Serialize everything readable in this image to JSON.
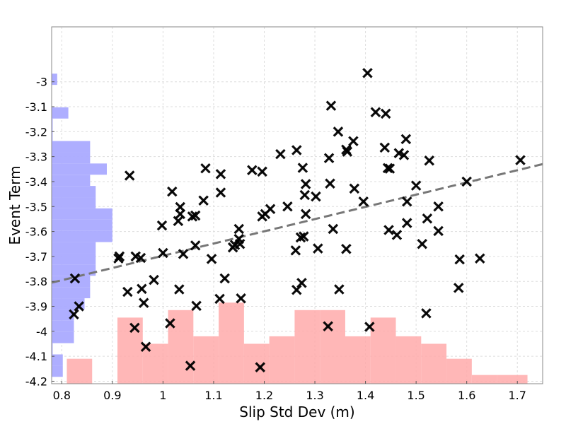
{
  "chart_data": {
    "type": "scatter",
    "xlabel": "Slip Std Dev (m)",
    "ylabel": "Event Term",
    "xlim": [
      0.78,
      1.75
    ],
    "ylim": [
      -4.21,
      -2.78
    ],
    "xticks": [
      "0.8",
      "0.9",
      "1",
      "1.1",
      "1.2",
      "1.3",
      "1.4",
      "1.5",
      "1.6",
      "1.7"
    ],
    "xtick_values": [
      0.8,
      0.9,
      1.0,
      1.1,
      1.2,
      1.3,
      1.4,
      1.5,
      1.6,
      1.7
    ],
    "yticks": [
      "-3",
      "-3.1",
      "-3.2",
      "-3.3",
      "-3.4",
      "-3.5",
      "-3.6",
      "-3.7",
      "-3.8",
      "-3.9",
      "-4",
      "-4.1",
      "-4.2"
    ],
    "ytick_values": [
      -3.0,
      -3.1,
      -3.2,
      -3.3,
      -3.4,
      -3.5,
      -3.6,
      -3.7,
      -3.8,
      -3.9,
      -4.0,
      -4.1,
      -4.2
    ],
    "grid": true,
    "marker": "x",
    "marker_color": "#000000",
    "trend_line": {
      "x": [
        0.78,
        1.75
      ],
      "y": [
        -3.805,
        -3.33
      ],
      "color": "#777777",
      "style": "dashed"
    },
    "histogram_y": {
      "color": "#aaaaff",
      "bin_width": 0.045,
      "bins": [
        {
          "y": -2.99,
          "w": 0.011
        },
        {
          "y": -3.035,
          "w": 0
        },
        {
          "y": -3.125,
          "w": 0.033
        },
        {
          "y": -3.17,
          "w": 0.002
        },
        {
          "y": -3.215,
          "w": 0.002
        },
        {
          "y": -3.26,
          "w": 0.076
        },
        {
          "y": -3.305,
          "w": 0.076
        },
        {
          "y": -3.35,
          "w": 0.109
        },
        {
          "y": -3.395,
          "w": 0.076
        },
        {
          "y": -3.44,
          "w": 0.087
        },
        {
          "y": -3.485,
          "w": 0.087
        },
        {
          "y": -3.53,
          "w": 0.12
        },
        {
          "y": -3.575,
          "w": 0.12
        },
        {
          "y": -3.62,
          "w": 0.12
        },
        {
          "y": -3.665,
          "w": 0.087
        },
        {
          "y": -3.71,
          "w": 0.087
        },
        {
          "y": -3.755,
          "w": 0.087
        },
        {
          "y": -3.8,
          "w": 0.076
        },
        {
          "y": -3.845,
          "w": 0.076
        },
        {
          "y": -3.89,
          "w": 0.065
        },
        {
          "y": -3.935,
          "w": 0.044
        },
        {
          "y": -3.98,
          "w": 0.044
        },
        {
          "y": -4.025,
          "w": 0.044
        },
        {
          "y": -4.07,
          "w": 0.002
        },
        {
          "y": -4.115,
          "w": 0.022
        },
        {
          "y": -4.16,
          "w": 0.022
        }
      ]
    },
    "histogram_x": {
      "color": "#ffaaaa",
      "bins": [
        {
          "x0": 0.81,
          "x1": 0.86,
          "h": 0.1
        },
        {
          "x0": 0.86,
          "x1": 0.91,
          "h": 0
        },
        {
          "x0": 0.91,
          "x1": 0.96,
          "h": 0.265
        },
        {
          "x0": 0.96,
          "x1": 1.01,
          "h": 0.16
        },
        {
          "x0": 1.01,
          "x1": 1.06,
          "h": 0.295
        },
        {
          "x0": 1.06,
          "x1": 1.11,
          "h": 0.19
        },
        {
          "x0": 1.11,
          "x1": 1.16,
          "h": 0.325
        },
        {
          "x0": 1.16,
          "x1": 1.21,
          "h": 0.16
        },
        {
          "x0": 1.21,
          "x1": 1.26,
          "h": 0.19
        },
        {
          "x0": 1.26,
          "x1": 1.31,
          "h": 0.295
        },
        {
          "x0": 1.31,
          "x1": 1.36,
          "h": 0.295
        },
        {
          "x0": 1.36,
          "x1": 1.41,
          "h": 0.19
        },
        {
          "x0": 1.41,
          "x1": 1.46,
          "h": 0.265
        },
        {
          "x0": 1.46,
          "x1": 1.51,
          "h": 0.19
        },
        {
          "x0": 1.51,
          "x1": 1.56,
          "h": 0.16
        },
        {
          "x0": 1.56,
          "x1": 1.61,
          "h": 0.1
        },
        {
          "x0": 1.61,
          "x1": 1.66,
          "h": 0.035
        },
        {
          "x0": 1.66,
          "x1": 1.72,
          "h": 0.035
        }
      ]
    },
    "series": [
      {
        "points": [
          [
            1.404,
            -2.965
          ],
          [
            1.332,
            -3.096
          ],
          [
            1.42,
            -3.122
          ],
          [
            1.44,
            -3.128
          ],
          [
            1.346,
            -3.2
          ],
          [
            1.48,
            -3.23
          ],
          [
            1.376,
            -3.238
          ],
          [
            1.438,
            -3.264
          ],
          [
            1.362,
            -3.272
          ],
          [
            1.264,
            -3.274
          ],
          [
            1.364,
            -3.28
          ],
          [
            1.466,
            -3.286
          ],
          [
            1.232,
            -3.29
          ],
          [
            1.476,
            -3.294
          ],
          [
            1.328,
            -3.306
          ],
          [
            1.526,
            -3.316
          ],
          [
            1.706,
            -3.314
          ],
          [
            1.444,
            -3.346
          ],
          [
            1.276,
            -3.345
          ],
          [
            1.448,
            -3.348
          ],
          [
            1.084,
            -3.347
          ],
          [
            1.176,
            -3.354
          ],
          [
            1.196,
            -3.36
          ],
          [
            1.114,
            -3.37
          ],
          [
            0.934,
            -3.376
          ],
          [
            1.6,
            -3.4
          ],
          [
            1.282,
            -3.41
          ],
          [
            1.33,
            -3.408
          ],
          [
            1.5,
            -3.416
          ],
          [
            1.378,
            -3.428
          ],
          [
            1.018,
            -3.44
          ],
          [
            1.114,
            -3.444
          ],
          [
            1.28,
            -3.454
          ],
          [
            1.302,
            -3.46
          ],
          [
            1.08,
            -3.476
          ],
          [
            1.482,
            -3.48
          ],
          [
            1.396,
            -3.48
          ],
          [
            1.246,
            -3.5
          ],
          [
            1.544,
            -3.5
          ],
          [
            1.034,
            -3.502
          ],
          [
            1.212,
            -3.51
          ],
          [
            1.202,
            -3.53
          ],
          [
            1.282,
            -3.53
          ],
          [
            1.034,
            -3.53
          ],
          [
            1.064,
            -3.536
          ],
          [
            1.196,
            -3.54
          ],
          [
            1.058,
            -3.54
          ],
          [
            1.522,
            -3.548
          ],
          [
            1.03,
            -3.558
          ],
          [
            1.482,
            -3.566
          ],
          [
            0.998,
            -3.576
          ],
          [
            1.15,
            -3.59
          ],
          [
            1.336,
            -3.59
          ],
          [
            1.446,
            -3.594
          ],
          [
            1.544,
            -3.598
          ],
          [
            1.462,
            -3.614
          ],
          [
            1.272,
            -3.624
          ],
          [
            1.278,
            -3.62
          ],
          [
            1.15,
            -3.63
          ],
          [
            1.152,
            -3.65
          ],
          [
            1.512,
            -3.65
          ],
          [
            1.064,
            -3.656
          ],
          [
            1.142,
            -3.654
          ],
          [
            1.138,
            -3.664
          ],
          [
            1.306,
            -3.668
          ],
          [
            1.362,
            -3.67
          ],
          [
            1.262,
            -3.676
          ],
          [
            1.0,
            -3.686
          ],
          [
            1.04,
            -3.69
          ],
          [
            0.946,
            -3.7
          ],
          [
            0.914,
            -3.7
          ],
          [
            0.912,
            -3.708
          ],
          [
            0.956,
            -3.706
          ],
          [
            1.096,
            -3.71
          ],
          [
            1.626,
            -3.708
          ],
          [
            1.586,
            -3.712
          ],
          [
            0.826,
            -3.788
          ],
          [
            1.122,
            -3.788
          ],
          [
            0.982,
            -3.794
          ],
          [
            1.274,
            -3.806
          ],
          [
            0.958,
            -3.83
          ],
          [
            1.032,
            -3.832
          ],
          [
            1.264,
            -3.834
          ],
          [
            1.348,
            -3.832
          ],
          [
            1.584,
            -3.826
          ],
          [
            0.93,
            -3.842
          ],
          [
            1.112,
            -3.87
          ],
          [
            1.154,
            -3.868
          ],
          [
            0.962,
            -3.886
          ],
          [
            1.066,
            -3.898
          ],
          [
            0.834,
            -3.9
          ],
          [
            1.52,
            -3.928
          ],
          [
            0.824,
            -3.932
          ],
          [
            1.014,
            -3.968
          ],
          [
            0.944,
            -3.986
          ],
          [
            1.326,
            -3.98
          ],
          [
            1.408,
            -3.982
          ],
          [
            0.966,
            -4.062
          ],
          [
            1.054,
            -4.138
          ],
          [
            1.192,
            -4.144
          ]
        ]
      }
    ]
  }
}
